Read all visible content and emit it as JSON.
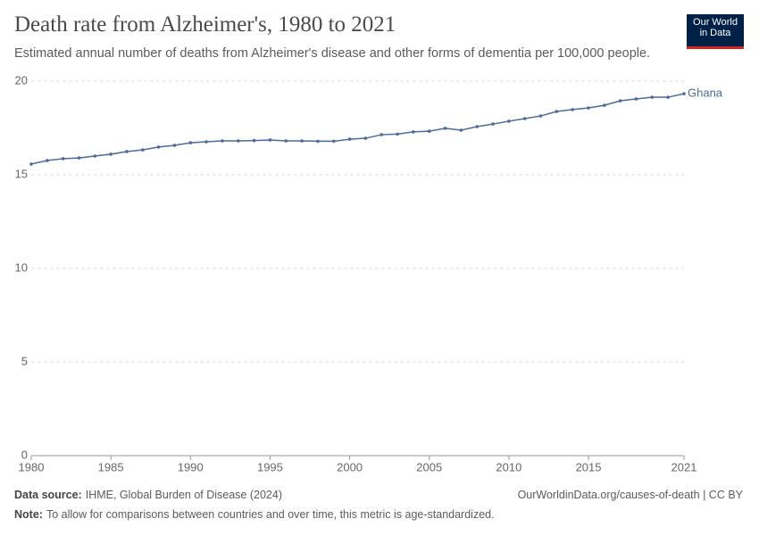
{
  "chart_data": {
    "type": "line",
    "title": "Death rate from Alzheimer's, 1980 to 2021",
    "subtitle": "Estimated annual number of deaths from Alzheimer's disease and other forms of dementia per 100,000 people.",
    "x": [
      1980,
      1981,
      1982,
      1983,
      1984,
      1985,
      1986,
      1987,
      1988,
      1989,
      1990,
      1991,
      1992,
      1993,
      1994,
      1995,
      1996,
      1997,
      1998,
      1999,
      2000,
      2001,
      2002,
      2003,
      2004,
      2005,
      2006,
      2007,
      2008,
      2009,
      2010,
      2011,
      2012,
      2013,
      2014,
      2015,
      2016,
      2017,
      2018,
      2019,
      2020,
      2021
    ],
    "series": [
      {
        "name": "Ghana",
        "color": "#4c6a9c",
        "values": [
          15.57,
          15.76,
          15.86,
          15.9,
          16.0,
          16.1,
          16.24,
          16.33,
          16.48,
          16.57,
          16.71,
          16.76,
          16.81,
          16.81,
          16.83,
          16.86,
          16.81,
          16.81,
          16.79,
          16.79,
          16.9,
          16.95,
          17.14,
          17.17,
          17.29,
          17.33,
          17.48,
          17.38,
          17.57,
          17.71,
          17.86,
          18.0,
          18.14,
          18.38,
          18.48,
          18.57,
          18.71,
          18.95,
          19.05,
          19.14,
          19.14,
          19.33
        ]
      }
    ],
    "xlim": [
      1980,
      2021
    ],
    "xticks": [
      1980,
      1985,
      1990,
      1995,
      2000,
      2005,
      2010,
      2015,
      2021
    ],
    "ylim": [
      0,
      20
    ],
    "yticks": [
      0,
      5,
      10,
      15,
      20
    ],
    "grid": true
  },
  "logo": {
    "line1": "Our World",
    "line2": "in Data"
  },
  "footer": {
    "source_label": "Data source:",
    "source": "IHME, Global Burden of Disease (2024)",
    "url": "OurWorldinData.org/causes-of-death | CC BY",
    "note_label": "Note:",
    "note": "To allow for comparisons between countries and over time, this metric is age-standardized."
  }
}
